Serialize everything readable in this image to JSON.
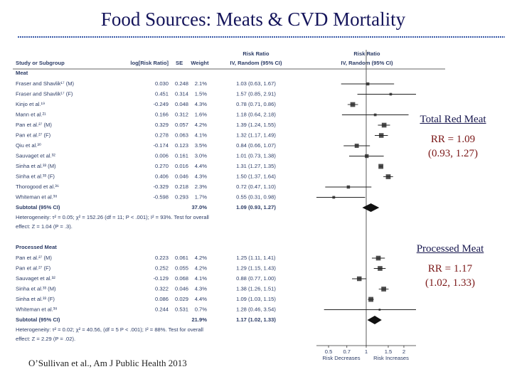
{
  "chart_data": {
    "type": "forest",
    "title": "Food Sources:  Meats & CVD Mortality",
    "headers": {
      "study": "Study or Subgroup",
      "log_rr": "log[Risk Ratio]",
      "se": "SE",
      "weight": "Weight",
      "ci_left": [
        "Risk Ratio",
        "IV, Random (95% CI)"
      ],
      "ci_right": [
        "Risk Ratio",
        "IV, Random (95% CI)"
      ]
    },
    "color": "#222222",
    "groups": [
      {
        "name": "Meat",
        "rows": [
          {
            "study": "Fraser and Shavlik¹⁷ (M)",
            "log_rr": "0.030",
            "se": "0.248",
            "weight": 2.1,
            "weight_label": "2.1%",
            "ci_label": "1.03 (0.63, 1.67)",
            "rr": 1.03,
            "lo": 0.63,
            "hi": 1.67
          },
          {
            "study": "Fraser and Shavlik¹⁷ (F)",
            "log_rr": "0.451",
            "se": "0.314",
            "weight": 1.5,
            "weight_label": "1.5%",
            "ci_label": "1.57 (0.85, 2.91)",
            "rr": 1.57,
            "lo": 0.85,
            "hi": 2.91
          },
          {
            "study": "Kinjo et al.¹⁹",
            "log_rr": "-0.249",
            "se": "0.048",
            "weight": 4.3,
            "weight_label": "4.3%",
            "ci_label": "0.78 (0.71, 0.86)",
            "rr": 0.78,
            "lo": 0.71,
            "hi": 0.86
          },
          {
            "study": "Mann et al.²¹",
            "log_rr": "0.166",
            "se": "0.312",
            "weight": 1.6,
            "weight_label": "1.6%",
            "ci_label": "1.18 (0.64, 2.18)",
            "rr": 1.18,
            "lo": 0.64,
            "hi": 2.18
          },
          {
            "study": "Pan et al.²⁷ (M)",
            "log_rr": "0.329",
            "se": "0.057",
            "weight": 4.2,
            "weight_label": "4.2%",
            "ci_label": "1.39 (1.24, 1.55)",
            "rr": 1.39,
            "lo": 1.24,
            "hi": 1.55
          },
          {
            "study": "Pan et al.²⁷ (F)",
            "log_rr": "0.278",
            "se": "0.063",
            "weight": 4.1,
            "weight_label": "4.1%",
            "ci_label": "1.32 (1.17, 1.49)",
            "rr": 1.32,
            "lo": 1.17,
            "hi": 1.49
          },
          {
            "study": "Qiu et al.³⁰",
            "log_rr": "-0.174",
            "se": "0.123",
            "weight": 3.5,
            "weight_label": "3.5%",
            "ci_label": "0.84 (0.66, 1.07)",
            "rr": 0.84,
            "lo": 0.66,
            "hi": 1.07
          },
          {
            "study": "Sauvaget et al.³²",
            "log_rr": "0.006",
            "se": "0.161",
            "weight": 3.0,
            "weight_label": "3.0%",
            "ci_label": "1.01 (0.73, 1.38)",
            "rr": 1.01,
            "lo": 0.73,
            "hi": 1.38
          },
          {
            "study": "Sinha et al.³³ (M)",
            "log_rr": "0.270",
            "se": "0.016",
            "weight": 4.4,
            "weight_label": "4.4%",
            "ci_label": "1.31 (1.27, 1.35)",
            "rr": 1.31,
            "lo": 1.27,
            "hi": 1.35
          },
          {
            "study": "Sinha et al.³³ (F)",
            "log_rr": "0.406",
            "se": "0.046",
            "weight": 4.3,
            "weight_label": "4.3%",
            "ci_label": "1.50 (1.37, 1.64)",
            "rr": 1.5,
            "lo": 1.37,
            "hi": 1.64
          },
          {
            "study": "Thorogood et al.³⁶",
            "log_rr": "-0.329",
            "se": "0.218",
            "weight": 2.3,
            "weight_label": "2.3%",
            "ci_label": "0.72 (0.47, 1.10)",
            "rr": 0.72,
            "lo": 0.47,
            "hi": 1.1
          },
          {
            "study": "Whiteman et al.³⁸",
            "log_rr": "-0.598",
            "se": "0.293",
            "weight": 1.7,
            "weight_label": "1.7%",
            "ci_label": "0.55 (0.31, 0.98)",
            "rr": 0.55,
            "lo": 0.31,
            "hi": 0.98
          }
        ],
        "subtotal": {
          "label": "Subtotal (95% CI)",
          "weight": 37.0,
          "weight_label": "37.0%",
          "ci_label": "1.09 (0.93, 1.27)",
          "rr": 1.09,
          "lo": 0.93,
          "hi": 1.27
        },
        "heterogeneity": [
          "Heterogeneity: τ² = 0.05; χ² = 152.26 (df = 11; P < .001); I² = 93%. Test for overall",
          "effect: Z = 1.04 (P = .3)."
        ]
      },
      {
        "name": "Processed Meat",
        "rows": [
          {
            "study": "Pan et al.²⁷ (M)",
            "log_rr": "0.223",
            "se": "0.061",
            "weight": 4.2,
            "weight_label": "4.2%",
            "ci_label": "1.25 (1.11, 1.41)",
            "rr": 1.25,
            "lo": 1.11,
            "hi": 1.41
          },
          {
            "study": "Pan et al.²⁷ (F)",
            "log_rr": "0.252",
            "se": "0.055",
            "weight": 4.2,
            "weight_label": "4.2%",
            "ci_label": "1.29 (1.15, 1.43)",
            "rr": 1.29,
            "lo": 1.15,
            "hi": 1.43
          },
          {
            "study": "Sauvaget et al.³²",
            "log_rr": "-0.129",
            "se": "0.068",
            "weight": 4.1,
            "weight_label": "4.1%",
            "ci_label": "0.88 (0.77, 1.00)",
            "rr": 0.88,
            "lo": 0.77,
            "hi": 1.0
          },
          {
            "study": "Sinha et al.³³ (M)",
            "log_rr": "0.322",
            "se": "0.046",
            "weight": 4.3,
            "weight_label": "4.3%",
            "ci_label": "1.38 (1.26, 1.51)",
            "rr": 1.38,
            "lo": 1.26,
            "hi": 1.51
          },
          {
            "study": "Sinha et al.³³ (F)",
            "log_rr": "0.086",
            "se": "0.029",
            "weight": 4.4,
            "weight_label": "4.4%",
            "ci_label": "1.09 (1.03, 1.15)",
            "rr": 1.09,
            "lo": 1.03,
            "hi": 1.15
          },
          {
            "study": "Whiteman et al.³⁸",
            "log_rr": "0.244",
            "se": "0.531",
            "weight": 0.7,
            "weight_label": "0.7%",
            "ci_label": "1.28 (0.46, 3.54)",
            "rr": 1.28,
            "lo": 0.46,
            "hi": 3.54
          }
        ],
        "subtotal": {
          "label": "Subtotal (95% CI)",
          "weight": 21.9,
          "weight_label": "21.9%",
          "ci_label": "1.17 (1.02, 1.33)",
          "rr": 1.17,
          "lo": 1.02,
          "hi": 1.33
        },
        "heterogeneity": [
          "Heterogeneity: τ² = 0.02; χ² = 40.56, (df = 5 P < .001); I² = 88%. Test for overall",
          "effect: Z = 2.29 (P = .02)."
        ]
      }
    ],
    "xscale": "log",
    "xlim": [
      0.4,
      2.5
    ],
    "xticks": [
      0.5,
      0.7,
      1,
      1.5,
      2
    ],
    "null_line": 1,
    "axis_labels": [
      "Risk Decreases",
      "Risk Increases"
    ],
    "annotations": [
      {
        "heading": "Total Red Meat",
        "lines": [
          "RR = 1.09",
          "(0.93, 1.27)"
        ]
      },
      {
        "heading": "Processed Meat",
        "lines": [
          "RR = 1.17",
          "(1.02, 1.33)"
        ]
      }
    ],
    "source": "O’Sullivan et al., Am J Public Health 2013"
  }
}
